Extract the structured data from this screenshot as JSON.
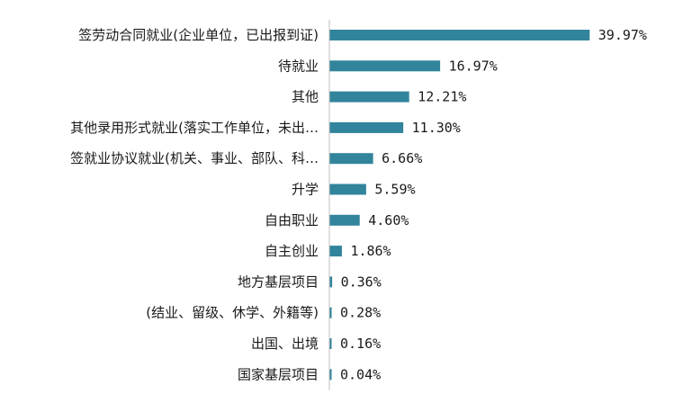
{
  "chart_data": {
    "type": "bar",
    "orientation": "horizontal",
    "categories": [
      "签劳动合同就业(企业单位，已出报到证)",
      "待就业",
      "其他",
      "其他录用形式就业(落实工作单位，未出…",
      "签就业协议就业(机关、事业、部队、科…",
      "升学",
      "自由职业",
      "自主创业",
      "地方基层项目",
      "(结业、留级、休学、外籍等)",
      "出国、出境",
      "国家基层项目"
    ],
    "values": [
      39.97,
      16.97,
      12.21,
      11.3,
      6.66,
      5.59,
      4.6,
      1.86,
      0.36,
      0.28,
      0.16,
      0.04
    ],
    "value_labels": [
      "39.97%",
      "16.97%",
      "12.21%",
      "11.30%",
      "6.66%",
      "5.59%",
      "4.60%",
      "1.86%",
      "0.36%",
      "0.28%",
      "0.16%",
      "0.04%"
    ],
    "bar_color": "#31849b",
    "axis_color": "#bfbfbf",
    "xlim": [
      0,
      40
    ],
    "grid": false,
    "legend": false
  }
}
